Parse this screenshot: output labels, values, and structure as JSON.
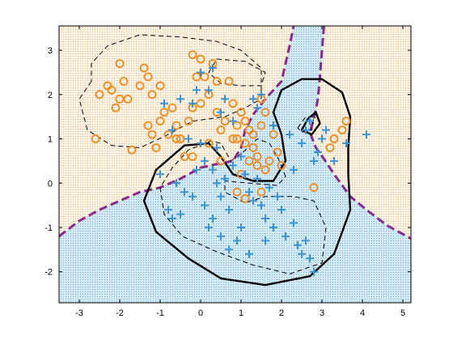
{
  "chart_data": {
    "type": "scatter",
    "title": "",
    "xlabel": "",
    "ylabel": "",
    "xlim": [
      -3.5,
      5.2
    ],
    "ylim": [
      -2.7,
      3.55
    ],
    "xticks": [
      -3,
      -2,
      -1,
      0,
      1,
      2,
      3,
      4,
      5
    ],
    "yticks": [
      -2,
      -1,
      0,
      1,
      2,
      3
    ],
    "xtick_labels": [
      "-3",
      "-2",
      "-1",
      "0",
      "1",
      "2",
      "3",
      "4",
      "5"
    ],
    "ytick_labels": [
      "-2",
      "-1",
      "0",
      "1",
      "2",
      "3"
    ],
    "grid": false,
    "legend": "none",
    "colors": {
      "circle_class": "#f28a1e",
      "plus_class": "#3c94d6",
      "circle_region": "#fbe6cc",
      "plus_region": "#cfe6f4",
      "bayes_boundary": "#8a2a8e",
      "model_boundary": "#000000"
    },
    "regions": [
      {
        "class": "circle",
        "marker_icon": "dot-texture"
      },
      {
        "class": "plus",
        "marker_icon": "dot-texture"
      }
    ],
    "boundaries": [
      {
        "style": "dashed",
        "color": "purple",
        "role": "bayes-decision-boundary",
        "points": [
          [
            -3.5,
            -1.2
          ],
          [
            -3,
            -0.85
          ],
          [
            -2.5,
            -0.6
          ],
          [
            -2,
            -0.4
          ],
          [
            -1.5,
            -0.2
          ],
          [
            -1,
            -0.1
          ],
          [
            -0.5,
            0.1
          ],
          [
            0,
            0.35
          ],
          [
            0.5,
            0.45
          ],
          [
            0.8,
            0.5
          ],
          [
            1,
            0.8
          ],
          [
            1.1,
            1.2
          ],
          [
            1.3,
            1.55
          ],
          [
            1.6,
            1.9
          ],
          [
            2,
            2.3
          ],
          [
            2.1,
            2.7
          ],
          [
            2.2,
            3.1
          ],
          [
            2.3,
            3.55
          ]
        ]
      },
      {
        "style": "dashed",
        "color": "purple",
        "role": "bayes-decision-boundary",
        "points": [
          [
            3.05,
            3.55
          ],
          [
            3.0,
            3.0
          ],
          [
            2.95,
            2.4
          ],
          [
            2.9,
            1.9
          ],
          [
            2.8,
            1.45
          ],
          [
            2.7,
            1.15
          ],
          [
            2.85,
            0.8
          ],
          [
            3.05,
            0.55
          ],
          [
            3.3,
            0.2
          ],
          [
            3.7,
            -0.3
          ],
          [
            4.1,
            -0.6
          ],
          [
            4.6,
            -0.95
          ],
          [
            5.2,
            -1.25
          ]
        ]
      },
      {
        "style": "solid",
        "color": "black",
        "role": "model-boundary",
        "points": [
          [
            2.7,
            -2.1
          ],
          [
            1.6,
            -2.3
          ],
          [
            0.5,
            -2.15
          ],
          [
            -0.3,
            -1.7
          ],
          [
            -1.1,
            -1.1
          ],
          [
            -1.4,
            -0.4
          ],
          [
            -1.1,
            0.3
          ],
          [
            -0.4,
            0.85
          ],
          [
            0.2,
            0.9
          ],
          [
            0.5,
            0.6
          ],
          [
            0.8,
            0.2
          ],
          [
            1.3,
            0.05
          ],
          [
            1.8,
            0.05
          ],
          [
            2.1,
            0.5
          ],
          [
            2.0,
            1.1
          ],
          [
            1.8,
            1.6
          ],
          [
            2.0,
            2.1
          ],
          [
            2.5,
            2.35
          ],
          [
            3.0,
            2.35
          ],
          [
            3.5,
            2.05
          ],
          [
            3.7,
            1.5
          ],
          [
            3.65,
            0.8
          ],
          [
            3.65,
            0.2
          ],
          [
            3.7,
            -0.6
          ],
          [
            3.3,
            -1.6
          ],
          [
            2.7,
            -2.1
          ]
        ]
      },
      {
        "style": "solid",
        "color": "black",
        "role": "model-boundary",
        "points": [
          [
            2.5,
            1.2
          ],
          [
            2.65,
            1.45
          ],
          [
            2.85,
            1.6
          ],
          [
            2.95,
            1.35
          ],
          [
            2.75,
            1.1
          ],
          [
            2.5,
            1.2
          ]
        ]
      },
      {
        "style": "dashed",
        "color": "black",
        "role": "model-margin",
        "points": [
          [
            -2.7,
            2.3
          ],
          [
            -3.0,
            1.9
          ],
          [
            -2.8,
            1.2
          ],
          [
            -2.2,
            0.85
          ],
          [
            -1.5,
            0.8
          ],
          [
            -0.8,
            1.1
          ],
          [
            -0.2,
            1.4
          ],
          [
            0.6,
            1.5
          ],
          [
            1.1,
            1.7
          ],
          [
            1.5,
            1.9
          ],
          [
            1.5,
            2.6
          ],
          [
            1.0,
            3.0
          ],
          [
            0.4,
            3.2
          ],
          [
            -0.5,
            3.3
          ],
          [
            -1.5,
            3.35
          ],
          [
            -2.3,
            3.1
          ],
          [
            -2.7,
            2.7
          ],
          [
            -2.7,
            2.3
          ]
        ]
      },
      {
        "style": "dashed",
        "color": "black",
        "role": "model-margin",
        "points": [
          [
            0.4,
            2.8
          ],
          [
            1.1,
            2.75
          ],
          [
            1.6,
            2.5
          ],
          [
            1.5,
            2.2
          ],
          [
            1.0,
            2.2
          ],
          [
            0.5,
            2.25
          ],
          [
            0.2,
            2.5
          ],
          [
            0.4,
            2.8
          ]
        ]
      },
      {
        "style": "dashed",
        "color": "black",
        "role": "model-margin",
        "points": [
          [
            2.1,
            0.15
          ],
          [
            1.9,
            0.6
          ],
          [
            1.7,
            0.9
          ],
          [
            1.4,
            1.0
          ],
          [
            1.05,
            0.7
          ],
          [
            0.75,
            0.5
          ],
          [
            0.5,
            0.9
          ],
          [
            0.25,
            0.95
          ],
          [
            -0.3,
            0.75
          ],
          [
            -0.7,
            0.35
          ],
          [
            -1.0,
            -0.1
          ],
          [
            -0.9,
            -0.7
          ],
          [
            -0.45,
            -1.2
          ],
          [
            0.4,
            -1.55
          ],
          [
            1.3,
            -1.85
          ],
          [
            2.2,
            -2.05
          ],
          [
            3.0,
            -1.8
          ],
          [
            3.1,
            -1.0
          ],
          [
            2.8,
            -0.4
          ],
          [
            2.3,
            -0.3
          ],
          [
            1.6,
            -0.3
          ],
          [
            1.1,
            -0.45
          ],
          [
            0.6,
            -0.2
          ],
          [
            0.6,
            0.05
          ],
          [
            1.2,
            0.0
          ],
          [
            1.9,
            -0.05
          ],
          [
            2.1,
            0.15
          ]
        ]
      },
      {
        "style": "dashed",
        "color": "black",
        "role": "model-margin",
        "points": [
          [
            2.4,
            1.25
          ],
          [
            2.6,
            1.5
          ],
          [
            2.8,
            1.5
          ],
          [
            2.75,
            1.2
          ],
          [
            2.5,
            1.15
          ],
          [
            2.4,
            1.25
          ]
        ]
      }
    ],
    "series": [
      {
        "marker": "circle",
        "points": [
          [
            -2.6,
            1.0
          ],
          [
            -2.5,
            2.0
          ],
          [
            -2.3,
            2.2
          ],
          [
            -2.2,
            2.1
          ],
          [
            -2.1,
            1.7
          ],
          [
            -2.0,
            2.7
          ],
          [
            -2.0,
            1.9
          ],
          [
            -1.9,
            2.3
          ],
          [
            -1.8,
            1.9
          ],
          [
            -1.7,
            0.75
          ],
          [
            -1.5,
            2.2
          ],
          [
            -1.4,
            2.6
          ],
          [
            -1.3,
            2.4
          ],
          [
            -1.2,
            2.0
          ],
          [
            -1.3,
            1.3
          ],
          [
            -1.2,
            1.1
          ],
          [
            -1.1,
            0.8
          ],
          [
            -1.0,
            2.2
          ],
          [
            -1.0,
            1.4
          ],
          [
            -0.9,
            1.6
          ],
          [
            -0.8,
            1.1
          ],
          [
            -0.6,
            1.3
          ],
          [
            -0.5,
            1.0
          ],
          [
            -0.3,
            1.4
          ],
          [
            -0.2,
            1.7
          ],
          [
            -0.1,
            2.4
          ],
          [
            -0.2,
            2.9
          ],
          [
            0.0,
            2.8
          ],
          [
            0.1,
            2.4
          ],
          [
            0.2,
            2.0
          ],
          [
            0.3,
            2.7
          ],
          [
            0.4,
            2.3
          ],
          [
            0.4,
            1.6
          ],
          [
            0.5,
            1.2
          ],
          [
            0.6,
            1.4
          ],
          [
            0.7,
            2.3
          ],
          [
            0.8,
            1.8
          ],
          [
            0.9,
            1.3
          ],
          [
            0.9,
            1.0
          ],
          [
            1.0,
            1.6
          ],
          [
            1.1,
            1.4
          ],
          [
            1.1,
            0.9
          ],
          [
            1.2,
            1.2
          ],
          [
            1.3,
            1.1
          ],
          [
            1.3,
            0.8
          ],
          [
            1.4,
            0.6
          ],
          [
            1.4,
            0.4
          ],
          [
            1.5,
            1.3
          ],
          [
            1.6,
            1.6
          ],
          [
            1.5,
            1.9
          ],
          [
            1.6,
            0.3
          ],
          [
            1.8,
            1.1
          ],
          [
            1.9,
            0.7
          ],
          [
            2.0,
            0.4
          ],
          [
            1.7,
            0.5
          ],
          [
            -0.4,
            0.6
          ],
          [
            -0.6,
            1.0
          ],
          [
            -0.2,
            0.6
          ],
          [
            0.2,
            0.9
          ],
          [
            0.5,
            0.5
          ],
          [
            0.9,
            -0.2
          ],
          [
            1.1,
            -0.35
          ],
          [
            1.0,
            0.2
          ],
          [
            1.5,
            -0.2
          ],
          [
            0.8,
            1.0
          ],
          [
            1.2,
            0.5
          ],
          [
            2.8,
            -0.1
          ],
          [
            3.2,
            0.8
          ],
          [
            3.3,
            1.0
          ],
          [
            3.5,
            1.2
          ],
          [
            3.6,
            1.4
          ],
          [
            0.0,
            1.8
          ],
          [
            -0.7,
            1.7
          ]
        ]
      },
      {
        "marker": "plus",
        "points": [
          [
            -0.7,
            1.2
          ],
          [
            -0.9,
            1.8
          ],
          [
            -0.5,
            1.9
          ],
          [
            -0.2,
            1.8
          ],
          [
            0.0,
            2.5
          ],
          [
            0.2,
            2.1
          ],
          [
            0.3,
            2.6
          ],
          [
            0.5,
            1.6
          ],
          [
            0.6,
            1.9
          ],
          [
            -0.1,
            0.3
          ],
          [
            0.1,
            0.5
          ],
          [
            0.3,
            0.3
          ],
          [
            0.4,
            0.0
          ],
          [
            0.5,
            -0.3
          ],
          [
            0.7,
            -0.6
          ],
          [
            0.8,
            0.4
          ],
          [
            1.0,
            0.6
          ],
          [
            1.1,
            0.2
          ],
          [
            1.2,
            -0.2
          ],
          [
            1.3,
            -0.4
          ],
          [
            1.4,
            0.1
          ],
          [
            1.5,
            -0.5
          ],
          [
            1.6,
            -0.8
          ],
          [
            1.8,
            -1.0
          ],
          [
            2.0,
            -0.6
          ],
          [
            2.1,
            -1.2
          ],
          [
            2.3,
            -0.9
          ],
          [
            2.4,
            -1.4
          ],
          [
            2.5,
            -1.6
          ],
          [
            2.6,
            -1.3
          ],
          [
            2.7,
            -1.7
          ],
          [
            2.8,
            -2.0
          ],
          [
            1.0,
            -1.0
          ],
          [
            0.9,
            -1.3
          ],
          [
            0.7,
            -1.5
          ],
          [
            0.5,
            -1.2
          ],
          [
            0.3,
            -0.8
          ],
          [
            0.1,
            -0.5
          ],
          [
            -0.2,
            -0.3
          ],
          [
            -0.4,
            -0.2
          ],
          [
            -0.6,
            0.0
          ],
          [
            -0.8,
            -0.6
          ],
          [
            -1.0,
            0.2
          ],
          [
            -0.7,
            -0.8
          ],
          [
            -0.5,
            -0.7
          ],
          [
            0.2,
            -1.0
          ],
          [
            1.2,
            -1.6
          ],
          [
            1.6,
            -1.3
          ],
          [
            1.9,
            -0.3
          ],
          [
            2.2,
            1.1
          ],
          [
            2.3,
            0.3
          ],
          [
            2.5,
            0.9
          ],
          [
            2.6,
            1.2
          ],
          [
            2.7,
            1.4
          ],
          [
            2.8,
            0.5
          ],
          [
            2.9,
            0.7
          ],
          [
            3.0,
            1.0
          ],
          [
            3.1,
            1.2
          ],
          [
            3.3,
            0.5
          ],
          [
            3.6,
            0.9
          ],
          [
            4.1,
            1.1
          ],
          [
            1.8,
            1.3
          ],
          [
            1.5,
            2.0
          ],
          [
            1.4,
            1.7
          ],
          [
            0.8,
            1.4
          ],
          [
            -0.3,
            1.0
          ],
          [
            0.0,
            0.9
          ],
          [
            0.4,
            0.8
          ],
          [
            0.6,
            0.1
          ],
          [
            1.7,
            -0.1
          ],
          [
            1.3,
            1.9
          ],
          [
            -0.1,
            2.1
          ]
        ]
      }
    ]
  }
}
